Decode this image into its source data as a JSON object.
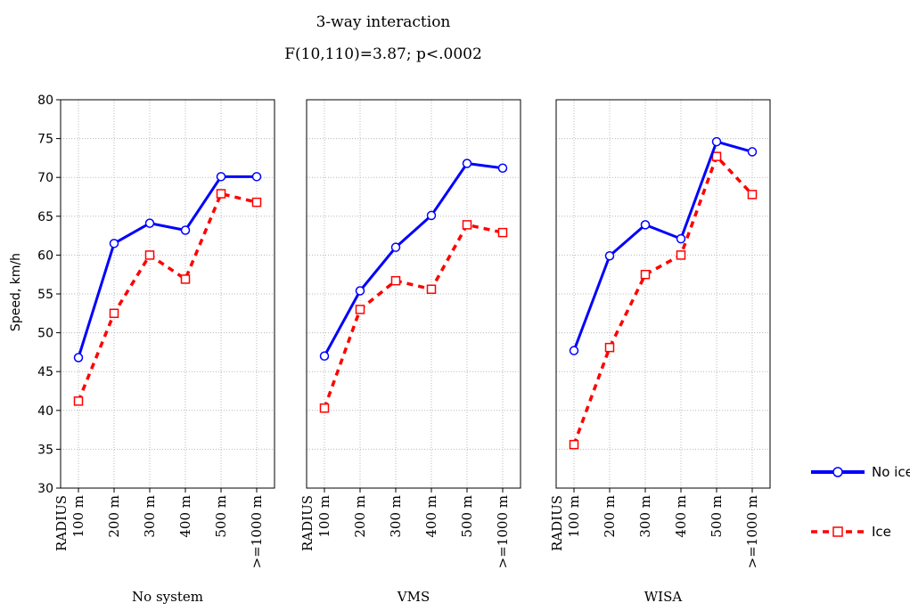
{
  "chart_data": {
    "type": "line",
    "title": "3-way interaction",
    "subtitle": "F(10,110)=3.87; p<.0002",
    "ylabel": "Speed, km/h",
    "xlabel_group": "RADIUS",
    "ylim": [
      30,
      80
    ],
    "yticks": [
      30,
      35,
      40,
      45,
      50,
      55,
      60,
      65,
      70,
      75,
      80
    ],
    "grid": true,
    "legend_position": "right",
    "categories": [
      "100 m",
      "200 m",
      "300 m",
      "400 m",
      "500 m",
      ">=1000 m"
    ],
    "panels": [
      {
        "label": "No system",
        "series": [
          {
            "name": "No ice",
            "values": [
              46.8,
              61.5,
              64.1,
              63.2,
              70.1,
              70.1
            ]
          },
          {
            "name": "Ice",
            "values": [
              41.2,
              52.5,
              60.0,
              56.9,
              67.9,
              66.8
            ]
          }
        ]
      },
      {
        "label": "VMS",
        "series": [
          {
            "name": "No ice",
            "values": [
              47.0,
              55.4,
              61.0,
              65.1,
              71.8,
              71.2
            ]
          },
          {
            "name": "Ice",
            "values": [
              40.3,
              53.0,
              56.7,
              55.6,
              63.9,
              62.9
            ]
          }
        ]
      },
      {
        "label": "WISA",
        "series": [
          {
            "name": "No ice",
            "values": [
              47.7,
              59.9,
              63.9,
              62.1,
              74.6,
              73.3
            ]
          },
          {
            "name": "Ice",
            "values": [
              35.6,
              48.1,
              57.5,
              60.0,
              72.7,
              67.8
            ]
          }
        ]
      }
    ],
    "series_styles": [
      {
        "name": "No ice",
        "color": "#0000ff",
        "line": "solid",
        "marker": "circle"
      },
      {
        "name": "Ice",
        "color": "#ff0000",
        "line": "dashed",
        "marker": "square"
      }
    ]
  }
}
